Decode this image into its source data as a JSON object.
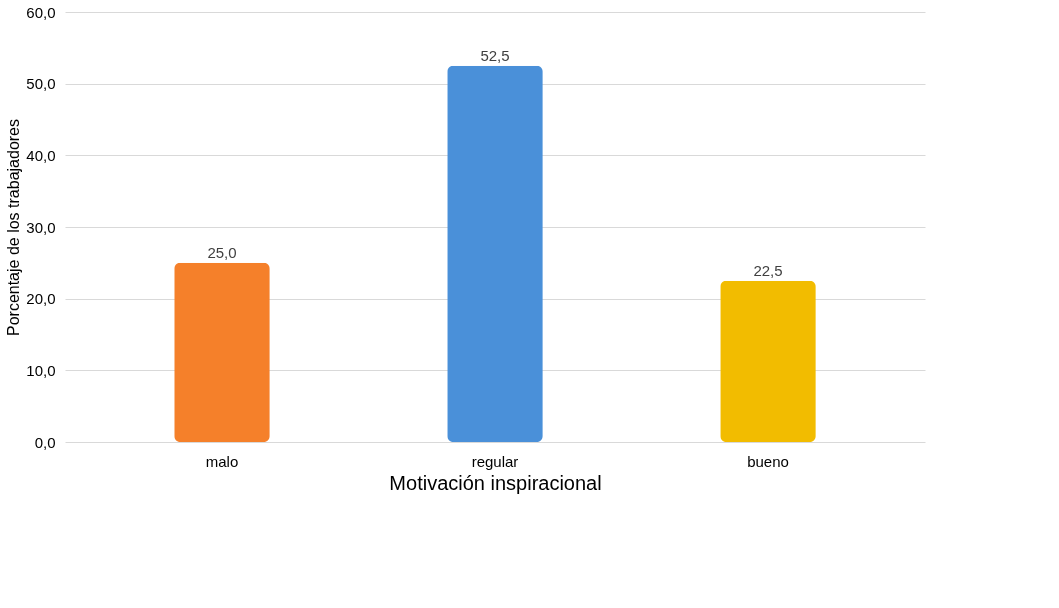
{
  "chart_data": {
    "type": "bar",
    "xlabel": "Motivación inspiracional",
    "ylabel": "Porcentaje de los trabajadores",
    "categories": [
      "malo",
      "regular",
      "bueno"
    ],
    "values": [
      25.0,
      52.5,
      22.5
    ],
    "colors": [
      "#f5802a",
      "#4a90d9",
      "#f2bc00"
    ],
    "value_labels": [
      "25,0",
      "52,5",
      "22,5"
    ],
    "ylim": [
      0,
      60
    ],
    "yticks": [
      {
        "value": 0,
        "label": "0,0"
      },
      {
        "value": 10,
        "label": "10,0"
      },
      {
        "value": 20,
        "label": "20,0"
      },
      {
        "value": 30,
        "label": "30,0"
      },
      {
        "value": 40,
        "label": "40,0"
      },
      {
        "value": 50,
        "label": "50,0"
      },
      {
        "value": 60,
        "label": "60,0"
      }
    ],
    "grid": "y",
    "legend": false
  }
}
